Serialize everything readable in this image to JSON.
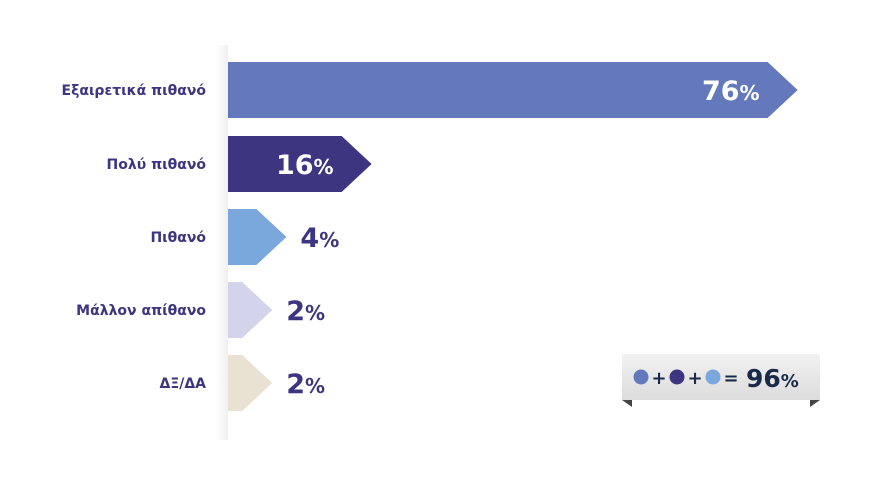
{
  "chart_data": {
    "type": "bar",
    "orientation": "horizontal",
    "title": "",
    "xlabel": "",
    "ylabel": "",
    "xlim": [
      0,
      100
    ],
    "unit": "%",
    "grid": false,
    "categories": [
      "Εξαιρετικά πιθανό",
      "Πολύ πιθανό",
      "Πιθανό",
      "Μάλλον απίθανο",
      "ΔΞ/ΔΑ"
    ],
    "values": [
      76,
      16,
      4,
      2,
      2
    ],
    "colors": [
      "#6479bb",
      "#3d3580",
      "#7aa7dc",
      "#d3d4ec",
      "#e9e2d2"
    ],
    "summary": {
      "operators": [
        "+",
        "+",
        "="
      ],
      "value": 96,
      "unit": "%",
      "colors": [
        "#6479bb",
        "#3d3580",
        "#7aa7dc"
      ]
    }
  }
}
